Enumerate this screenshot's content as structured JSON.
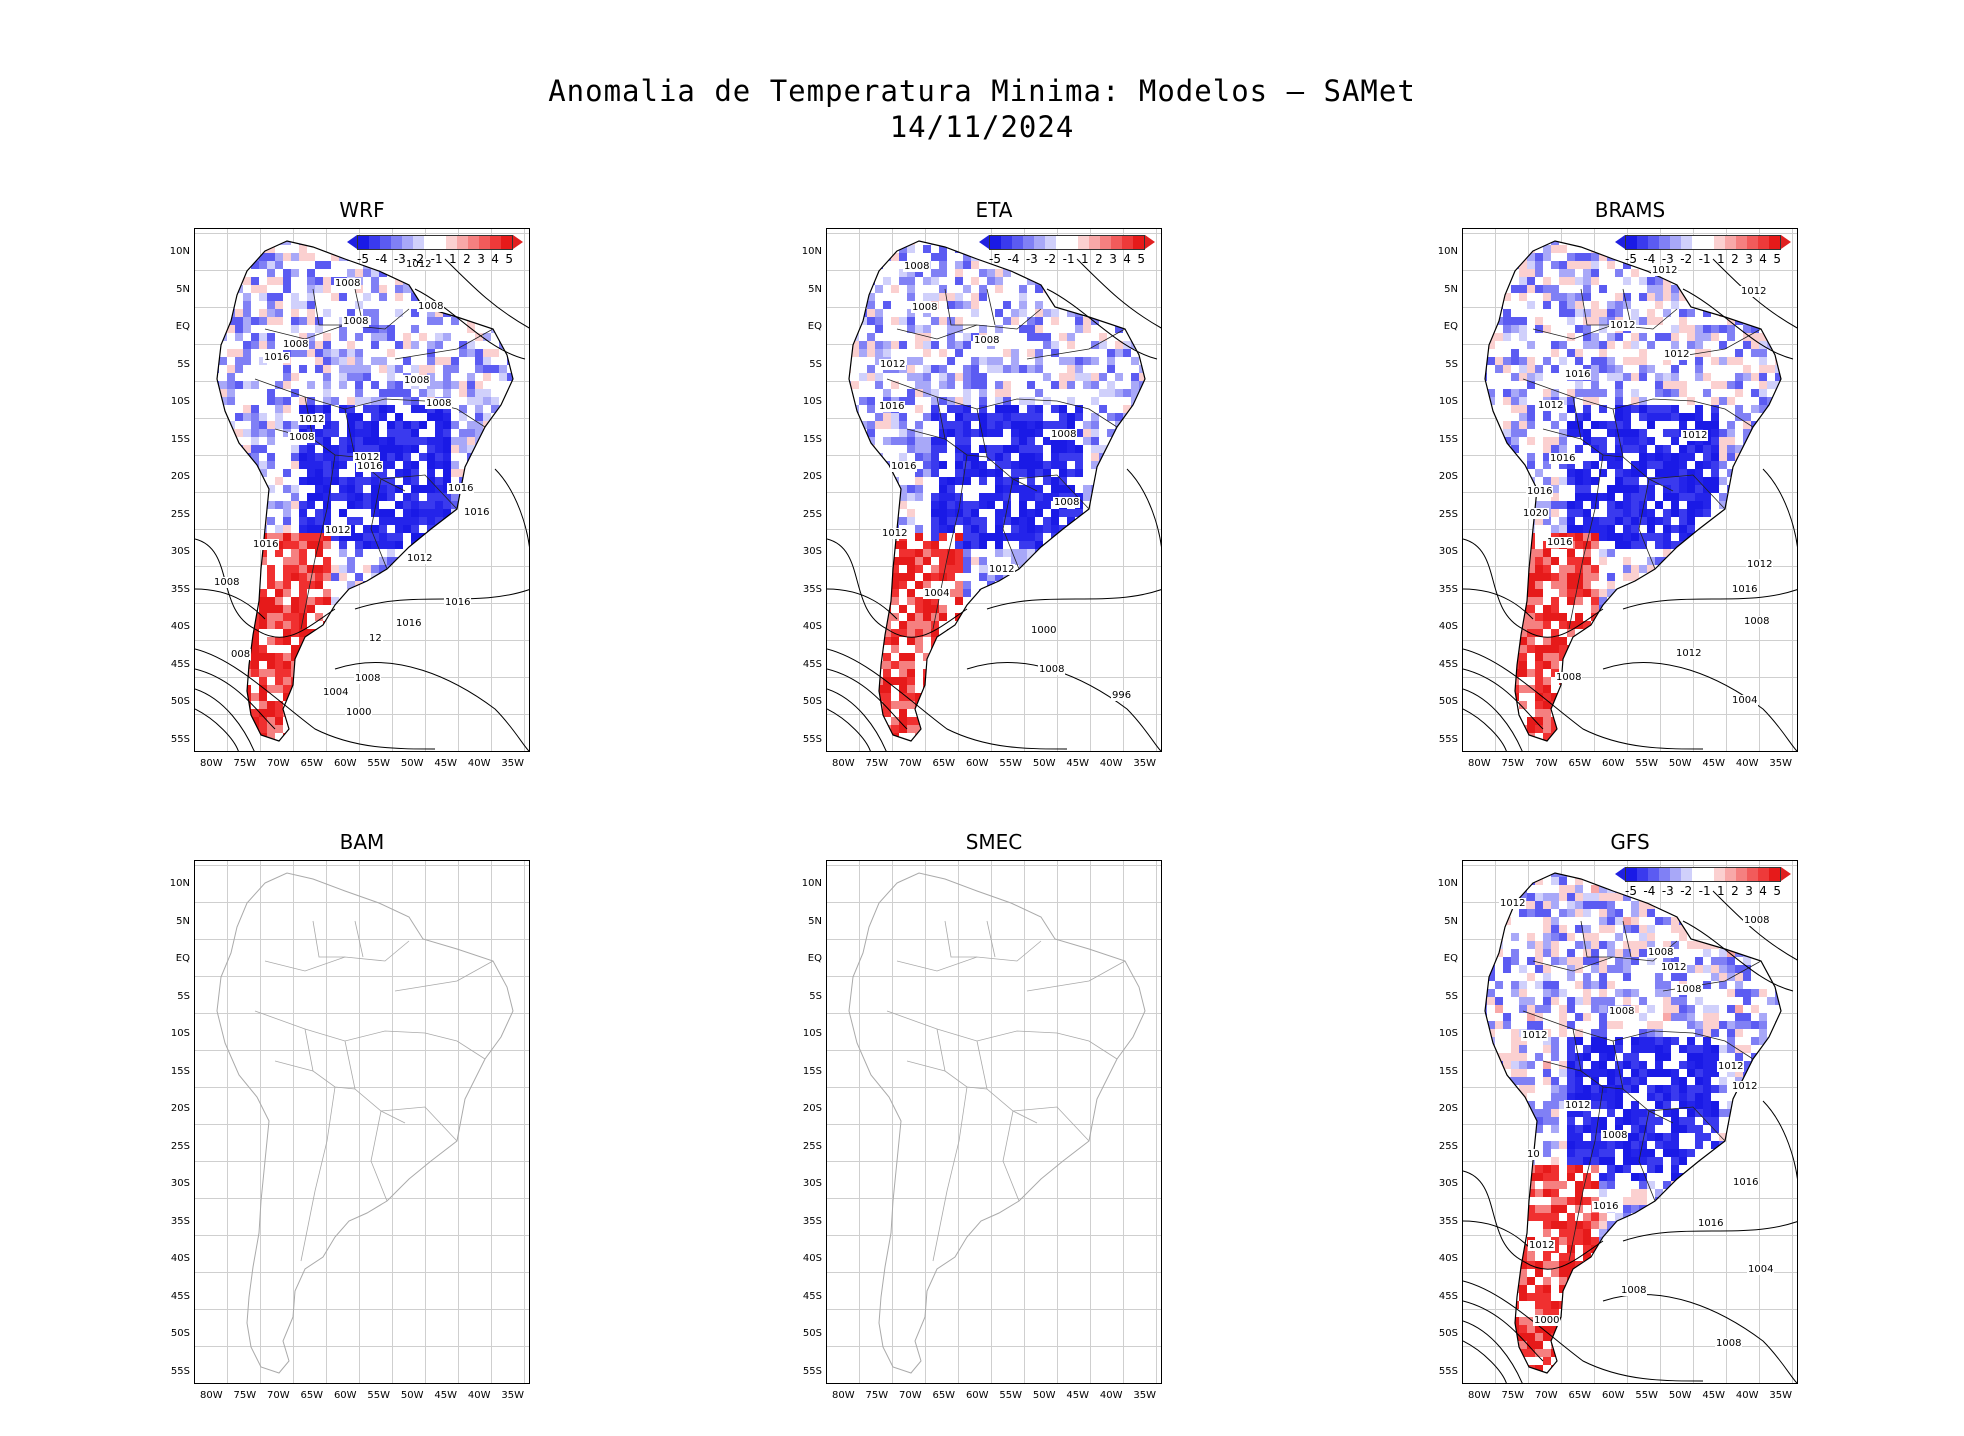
{
  "title_line1": "Anomalia de Temperatura Minima: Modelos — SAMet",
  "title_line2": "14/11/2024",
  "lat_labels": [
    "10N",
    "5N",
    "EQ",
    "5S",
    "10S",
    "15S",
    "20S",
    "25S",
    "30S",
    "35S",
    "40S",
    "45S",
    "50S",
    "55S"
  ],
  "lon_labels": [
    "80W",
    "75W",
    "70W",
    "65W",
    "60W",
    "55W",
    "50W",
    "45W",
    "40W",
    "35W"
  ],
  "legend": {
    "ticks": [
      "-5",
      "-4",
      "-3",
      "-2",
      "-1",
      "1",
      "2",
      "3",
      "4",
      "5"
    ],
    "colors": [
      "#1a1ae6",
      "#3a3aee",
      "#5b5bf2",
      "#8080f5",
      "#a8a8f8",
      "#d0d0fb",
      "#ffffff",
      "#ffffff",
      "#fbd0d0",
      "#f8a8a8",
      "#f58080",
      "#f25b5b",
      "#ee3a3a",
      "#e61a1a"
    ]
  },
  "panels": [
    {
      "id": "WRF",
      "title": "WRF",
      "has_data": true,
      "legend": true,
      "isobars": [
        "1012",
        "1008",
        "1008",
        "1008",
        "1008",
        "1016",
        "1008",
        "1008",
        "1012",
        "1008",
        "1012",
        "1016",
        "1016",
        "1016",
        "1012",
        "1016",
        "1012",
        "1008",
        "1016",
        "1016",
        "12",
        "008",
        "1008",
        "1004",
        "1000"
      ]
    },
    {
      "id": "ETA",
      "title": "ETA",
      "has_data": true,
      "legend": true,
      "isobars": [
        "1008",
        "1008",
        "1008",
        "1012",
        "1016",
        "1008",
        "1016",
        "1008",
        "1012",
        "1012",
        "1004",
        "1000",
        "1008",
        "996"
      ]
    },
    {
      "id": "BRAMS",
      "title": "BRAMS",
      "has_data": true,
      "legend": true,
      "isobars": [
        "1012",
        "1012",
        "1012",
        "1012",
        "1016",
        "1012",
        "1012",
        "1016",
        "1016",
        "1020",
        "1016",
        "1012",
        "1016",
        "1008",
        "1012",
        "1008",
        "1004"
      ]
    },
    {
      "id": "BAM",
      "title": "BAM",
      "has_data": false,
      "legend": false,
      "isobars": []
    },
    {
      "id": "SMEC",
      "title": "SMEC",
      "has_data": false,
      "legend": false,
      "isobars": []
    },
    {
      "id": "GFS",
      "title": "GFS",
      "has_data": true,
      "legend": true,
      "isobars": [
        "1012",
        "1008",
        "1008",
        "1012",
        "1008",
        "1008",
        "1012",
        "1012",
        "1012",
        "1012",
        "1008",
        "10",
        "1016",
        "1016",
        "1016",
        "1012",
        "1004",
        "1008",
        "1000",
        "1008"
      ]
    }
  ]
}
